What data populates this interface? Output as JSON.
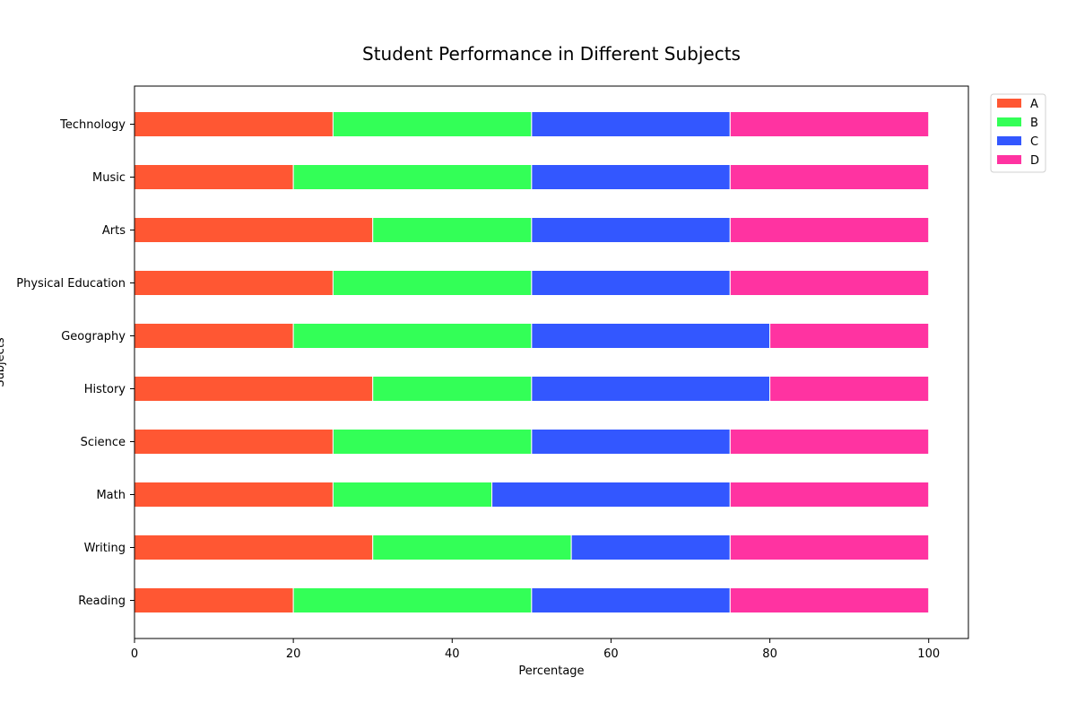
{
  "chart_data": {
    "type": "bar",
    "orientation": "horizontal",
    "stacked": true,
    "title": "Student Performance in Different Subjects",
    "xlabel": "Percentage",
    "ylabel": "Subjects",
    "xlim": [
      0,
      105
    ],
    "x_ticks": [
      0,
      20,
      40,
      60,
      80,
      100
    ],
    "grid": false,
    "legend_position": "outside-top-right",
    "categories": [
      "Reading",
      "Writing",
      "Math",
      "Science",
      "History",
      "Geography",
      "Physical Education",
      "Arts",
      "Music",
      "Technology"
    ],
    "series": [
      {
        "name": "A",
        "color": "#FF5733",
        "values": [
          20,
          30,
          25,
          25,
          30,
          20,
          25,
          30,
          20,
          25
        ]
      },
      {
        "name": "B",
        "color": "#33FF57",
        "values": [
          30,
          25,
          20,
          25,
          20,
          30,
          25,
          20,
          30,
          25
        ]
      },
      {
        "name": "C",
        "color": "#3357FF",
        "values": [
          25,
          20,
          30,
          25,
          30,
          30,
          25,
          25,
          25,
          25
        ]
      },
      {
        "name": "D",
        "color": "#FF33A1",
        "values": [
          25,
          25,
          25,
          25,
          20,
          20,
          25,
          25,
          25,
          25
        ]
      }
    ]
  }
}
